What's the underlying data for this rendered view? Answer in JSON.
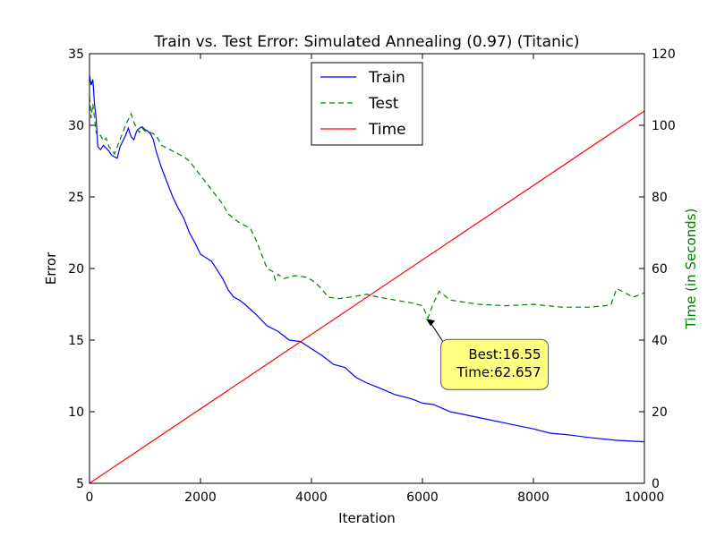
{
  "chart_data": {
    "type": "line",
    "title": "Train vs. Test Error: Simulated Annealing (0.97) (Titanic)",
    "xlabel": "Iteration",
    "ylabel": "Error",
    "y2label": "Time (in Seconds)",
    "xlim": [
      0,
      10000
    ],
    "ylim": [
      5,
      35
    ],
    "y2lim": [
      0,
      120
    ],
    "xticks": [
      0,
      2000,
      4000,
      6000,
      8000,
      10000
    ],
    "yticks": [
      5,
      10,
      15,
      20,
      25,
      30,
      35
    ],
    "y2ticks": [
      0,
      20,
      40,
      60,
      80,
      100,
      120
    ],
    "legend_position": "upper-center",
    "grid": false,
    "series": [
      {
        "name": "Train",
        "axis": "left",
        "color": "#0000ff",
        "style": "solid",
        "x": [
          0,
          30,
          60,
          90,
          120,
          150,
          200,
          250,
          300,
          350,
          400,
          450,
          500,
          550,
          600,
          650,
          700,
          750,
          800,
          850,
          900,
          950,
          1000,
          1050,
          1100,
          1150,
          1200,
          1300,
          1400,
          1500,
          1600,
          1700,
          1800,
          1900,
          2000,
          2200,
          2400,
          2500,
          2600,
          2700,
          2800,
          3000,
          3200,
          3400,
          3600,
          3800,
          4000,
          4200,
          4400,
          4600,
          4800,
          5000,
          5200,
          5500,
          5800,
          6000,
          6200,
          6500,
          7000,
          7500,
          8000,
          8300,
          8600,
          9000,
          9500,
          10000
        ],
        "y": [
          33.5,
          32.8,
          33.2,
          31.5,
          30.5,
          28.5,
          28.3,
          28.6,
          28.4,
          28.2,
          27.9,
          27.8,
          27.7,
          28.5,
          28.9,
          29.3,
          29.8,
          29.2,
          29.0,
          29.6,
          29.8,
          29.9,
          29.7,
          29.6,
          29.4,
          29.0,
          28.2,
          27.0,
          26.0,
          25.0,
          24.2,
          23.5,
          22.5,
          21.8,
          21.0,
          20.5,
          19.3,
          18.5,
          18.0,
          17.8,
          17.5,
          16.8,
          16.0,
          15.6,
          15.0,
          14.9,
          14.4,
          13.9,
          13.3,
          13.1,
          12.4,
          12.0,
          11.7,
          11.2,
          10.9,
          10.6,
          10.5,
          10.0,
          9.6,
          9.2,
          8.8,
          8.5,
          8.4,
          8.2,
          8.0,
          7.9
        ]
      },
      {
        "name": "Test",
        "axis": "left",
        "color": "#008000",
        "style": "dashed",
        "x": [
          0,
          30,
          60,
          90,
          120,
          150,
          200,
          250,
          300,
          350,
          400,
          450,
          500,
          550,
          600,
          650,
          700,
          750,
          800,
          850,
          900,
          950,
          1000,
          1100,
          1200,
          1300,
          1400,
          1500,
          1600,
          1700,
          1800,
          1900,
          2000,
          2100,
          2200,
          2300,
          2400,
          2500,
          2600,
          2700,
          2800,
          2900,
          3000,
          3100,
          3200,
          3300,
          3350,
          3400,
          3500,
          3700,
          3900,
          4000,
          4100,
          4200,
          4300,
          4500,
          4700,
          5000,
          5200,
          5500,
          5800,
          6000,
          6100,
          6200,
          6300,
          6500,
          7000,
          7500,
          8000,
          8500,
          9000,
          9300,
          9400,
          9500,
          9800,
          10000
        ],
        "y": [
          32.0,
          30.5,
          31.5,
          30.5,
          29.5,
          29.2,
          29.3,
          28.9,
          29.1,
          28.5,
          28.3,
          28.0,
          28.5,
          29.0,
          29.5,
          30.0,
          30.4,
          30.8,
          30.2,
          29.8,
          29.5,
          29.8,
          29.6,
          29.5,
          29.3,
          28.6,
          28.4,
          28.2,
          28.0,
          27.8,
          27.5,
          27.0,
          26.5,
          26.0,
          25.5,
          25.0,
          24.5,
          23.8,
          23.5,
          23.2,
          23.0,
          22.8,
          22.0,
          21.0,
          20.0,
          19.8,
          19.2,
          19.6,
          19.3,
          19.5,
          19.4,
          19.2,
          18.9,
          18.5,
          18.0,
          17.9,
          18.0,
          18.2,
          18.0,
          17.8,
          17.6,
          17.4,
          16.55,
          17.6,
          18.4,
          17.8,
          17.5,
          17.4,
          17.5,
          17.3,
          17.3,
          17.4,
          17.5,
          18.6,
          18.0,
          18.3
        ]
      },
      {
        "name": "Time",
        "axis": "right",
        "color": "#ff0000",
        "style": "solid",
        "x": [
          0,
          10000
        ],
        "y": [
          0,
          104
        ]
      }
    ],
    "annotation": {
      "lines": [
        "Best:16.55",
        "Time:62.657"
      ],
      "target_x": 6050,
      "target_y": 16.55,
      "text_x": 7300,
      "text_y": 13.3,
      "box_color": "#ffff80"
    }
  }
}
